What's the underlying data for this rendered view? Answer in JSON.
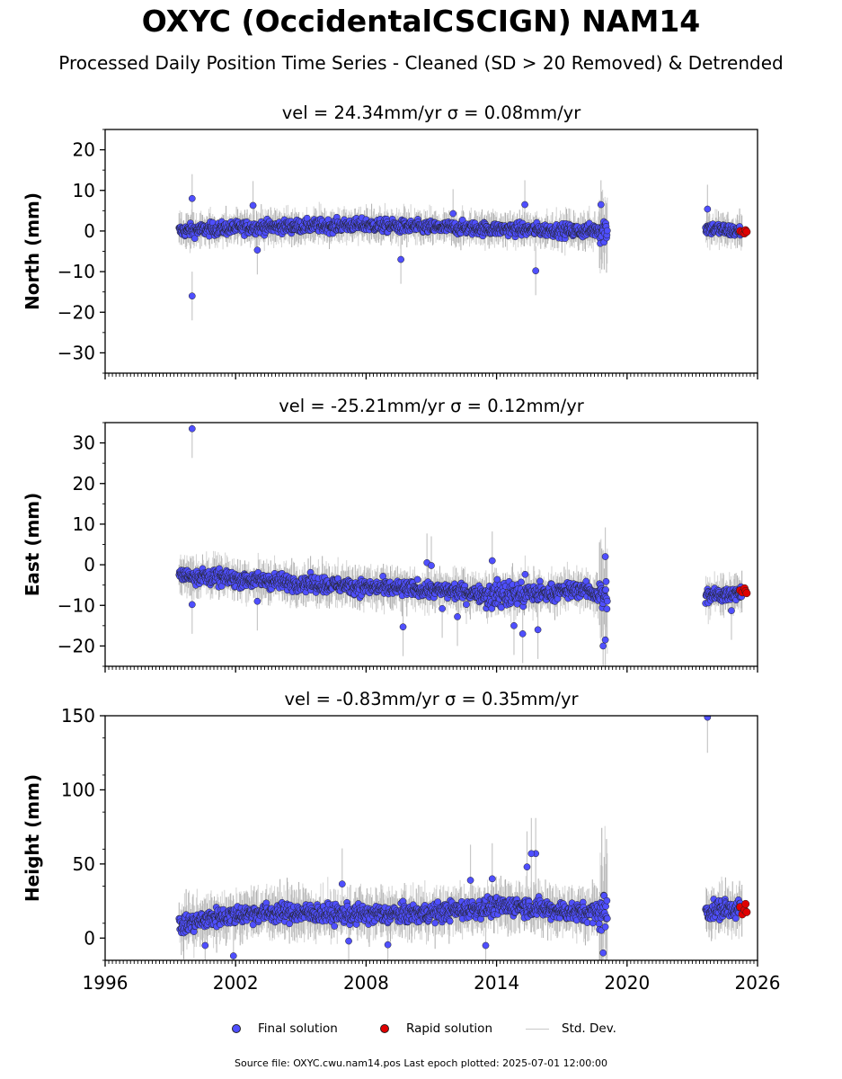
{
  "page": {
    "title": "OXYC (OccidentalCSCIGN) NAM14",
    "subtitle": "Processed Daily Position Time Series - Cleaned (SD > 20 Removed) & Detrended",
    "footer": "Source file: OXYC.cwu.nam14.pos  Last epoch plotted: 2025-07-01 12:00:00"
  },
  "legend": {
    "final_label": "Final solution",
    "rapid_label": "Rapid solution",
    "std_label": "Std. Dev."
  },
  "colors": {
    "final": "#4f4fff",
    "rapid": "#e00000",
    "std_dev": "#c8c8c8",
    "marker_edge": "#222222"
  },
  "chart_data": [
    {
      "type": "scatter",
      "title": "vel = 24.34mm/yr   σ = 0.08mm/yr",
      "ylabel": "North (mm)",
      "xlim": [
        1996,
        2026
      ],
      "ylim": [
        -35,
        25
      ],
      "yticks": [
        -30,
        -20,
        -10,
        0,
        10,
        20
      ],
      "gaps": [
        [
          2019.1,
          2023.6
        ]
      ],
      "final_trend": [
        [
          1999.4,
          0.0
        ],
        [
          2002.0,
          0.8
        ],
        [
          2005.0,
          1.2
        ],
        [
          2008.0,
          1.5
        ],
        [
          2010.0,
          1.0
        ],
        [
          2012.0,
          0.8
        ],
        [
          2014.0,
          0.5
        ],
        [
          2016.0,
          0.3
        ],
        [
          2018.0,
          0.0
        ],
        [
          2019.0,
          0.5
        ],
        [
          2023.7,
          0.7
        ],
        [
          2024.5,
          0.3
        ],
        [
          2025.3,
          -0.3
        ]
      ],
      "spread": 1.5,
      "outliers": [
        [
          2000.0,
          8.0
        ],
        [
          2000.0,
          -16.0
        ],
        [
          2002.8,
          6.3
        ],
        [
          2003.0,
          -4.7
        ],
        [
          2009.6,
          -7.0
        ],
        [
          2015.8,
          -9.8
        ],
        [
          2015.3,
          6.5
        ],
        [
          2018.8,
          6.5
        ],
        [
          2023.7,
          5.4
        ],
        [
          2012.0,
          4.3
        ]
      ],
      "rapid": [
        [
          2025.2,
          0.0
        ],
        [
          2025.3,
          -0.3
        ],
        [
          2025.4,
          -0.6
        ],
        [
          2025.45,
          0.2
        ],
        [
          2025.5,
          -0.2
        ]
      ]
    },
    {
      "type": "scatter",
      "title": "vel = -25.21mm/yr   σ = 0.12mm/yr",
      "ylabel": "East (mm)",
      "xlim": [
        1996,
        2026
      ],
      "ylim": [
        -25,
        35
      ],
      "yticks": [
        -20,
        -10,
        0,
        10,
        20,
        30
      ],
      "gaps": [
        [
          2019.1,
          2023.6
        ]
      ],
      "final_trend": [
        [
          1999.4,
          -2.5
        ],
        [
          2002.0,
          -3.5
        ],
        [
          2005.0,
          -4.5
        ],
        [
          2008.0,
          -5.5
        ],
        [
          2010.0,
          -6.0
        ],
        [
          2012.0,
          -6.5
        ],
        [
          2014.0,
          -7.5
        ],
        [
          2016.0,
          -7.0
        ],
        [
          2018.0,
          -6.0
        ],
        [
          2019.0,
          -8.0
        ],
        [
          2023.7,
          -7.7
        ],
        [
          2024.5,
          -7.3
        ],
        [
          2025.3,
          -6.5
        ]
      ],
      "spread": 1.8,
      "outliers": [
        [
          2000.0,
          33.5
        ],
        [
          2000.0,
          -9.8
        ],
        [
          2003.0,
          -9.0
        ],
        [
          2009.7,
          -15.3
        ],
        [
          2010.8,
          0.5
        ],
        [
          2011.0,
          -0.2
        ],
        [
          2011.5,
          -10.8
        ],
        [
          2012.2,
          -12.8
        ],
        [
          2013.8,
          1.0
        ],
        [
          2015.2,
          -17.0
        ],
        [
          2015.9,
          -16.0
        ],
        [
          2014.8,
          -15.0
        ],
        [
          2018.9,
          -20.0
        ],
        [
          2019.0,
          -18.5
        ],
        [
          2019.0,
          2.0
        ],
        [
          2024.8,
          -11.3
        ]
      ],
      "rapid": [
        [
          2025.2,
          -6.3
        ],
        [
          2025.3,
          -6.8
        ],
        [
          2025.4,
          -5.8
        ],
        [
          2025.45,
          -6.5
        ],
        [
          2025.5,
          -7.0
        ]
      ]
    },
    {
      "type": "scatter",
      "title": "vel = -0.83mm/yr   σ = 0.35mm/yr",
      "ylabel": "Height (mm)",
      "xlabel": "",
      "xlim": [
        1996,
        2026
      ],
      "ylim": [
        -15,
        150
      ],
      "yticks": [
        0,
        50,
        100,
        150
      ],
      "xticks": [
        1996,
        2002,
        2008,
        2014,
        2020,
        2026
      ],
      "gaps": [
        [
          2019.1,
          2023.6
        ]
      ],
      "final_trend": [
        [
          1999.4,
          8.0
        ],
        [
          2001.0,
          14.0
        ],
        [
          2003.0,
          17.0
        ],
        [
          2005.0,
          17.0
        ],
        [
          2007.0,
          16.0
        ],
        [
          2009.0,
          16.0
        ],
        [
          2011.0,
          17.0
        ],
        [
          2013.0,
          20.0
        ],
        [
          2015.0,
          22.0
        ],
        [
          2016.0,
          20.0
        ],
        [
          2018.0,
          17.0
        ],
        [
          2019.0,
          18.0
        ],
        [
          2023.7,
          18.0
        ],
        [
          2024.5,
          20.0
        ],
        [
          2025.3,
          20.0
        ]
      ],
      "spread": 6.0,
      "outliers": [
        [
          2023.7,
          149.0
        ],
        [
          2015.8,
          57.0
        ],
        [
          2015.6,
          57.0
        ],
        [
          2015.4,
          48.0
        ],
        [
          2013.8,
          40.0
        ],
        [
          2012.8,
          39.0
        ],
        [
          2006.9,
          36.5
        ],
        [
          2001.9,
          -12.0
        ],
        [
          2009.0,
          -4.5
        ],
        [
          2007.2,
          -2.0
        ],
        [
          2013.5,
          -5.0
        ],
        [
          2018.9,
          -10.0
        ],
        [
          2000.6,
          -5.0
        ]
      ],
      "rapid": [
        [
          2025.2,
          21.0
        ],
        [
          2025.3,
          16.0
        ],
        [
          2025.4,
          19.0
        ],
        [
          2025.45,
          23.0
        ],
        [
          2025.5,
          17.5
        ]
      ]
    }
  ]
}
